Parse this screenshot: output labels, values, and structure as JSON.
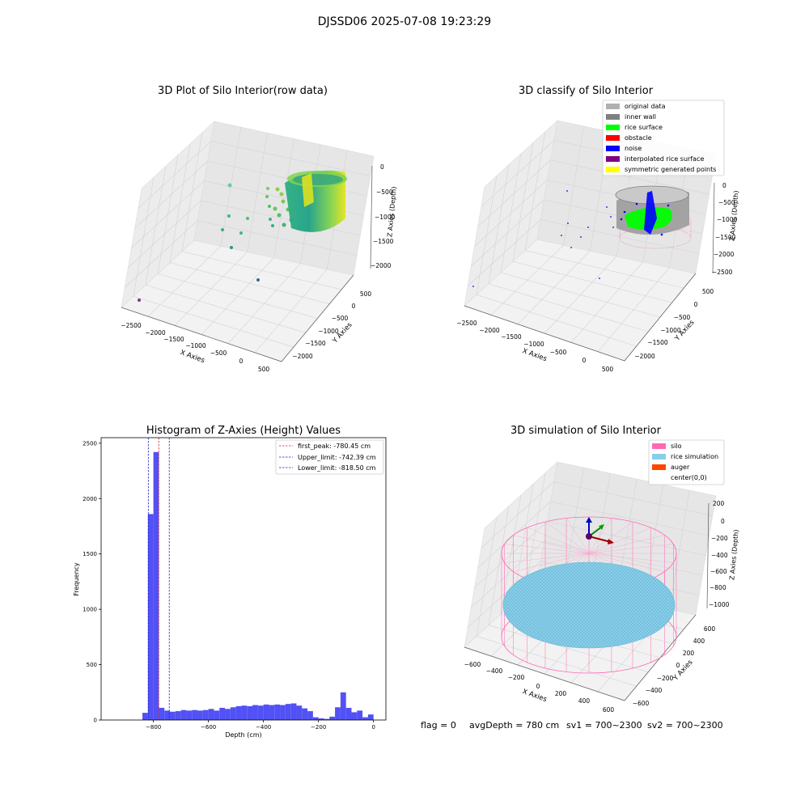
{
  "figure": {
    "suptitle": "DJSSD06 2025-07-08 19:23:29",
    "status": {
      "flag": "flag = 0",
      "avg_depth": "avgDepth = 780 cm",
      "sv1": "sv1 = 700~2300",
      "sv2": "sv2 = 700~2300"
    }
  },
  "colors": {
    "histogram_bar": "#5151f5",
    "first_peak_line": "#d62728",
    "limit_line": "#1f1fd6",
    "silo": "#ff69b4",
    "rice_simulation": "#87ceeb",
    "auger": "#ff4500",
    "original_data": "#b0b0b0",
    "inner_wall": "#808080",
    "rice_surface": "#00ff00",
    "obstacle": "#ff0000",
    "noise": "#0000ff",
    "interpolated_rice_surface": "#800080",
    "symmetric_generated_points": "#ffff00"
  },
  "chart_data": [
    {
      "type": "scatter3d",
      "title": "3D Plot of Silo Interior(row data)",
      "xlabel": "X Axies",
      "ylabel": "Y Axies",
      "zlabel": "Z Axies (Depth)",
      "xticks": [
        "−2500",
        "−2000",
        "−1500",
        "−1000",
        "−500",
        "0",
        "500"
      ],
      "yticks": [
        "500",
        "0",
        "−500",
        "−1000",
        "−1500",
        "−2000"
      ],
      "zticks": [
        "0",
        "−500",
        "−1000",
        "−1500",
        "−2000"
      ]
    },
    {
      "type": "scatter3d",
      "title": "3D classify of Silo Interior",
      "xlabel": "X Axies",
      "ylabel": "Y Axies",
      "zlabel": "Z Axies (Depth)",
      "xticks": [
        "−2500",
        "−2000",
        "−1500",
        "−1000",
        "−500",
        "0",
        "500"
      ],
      "yticks": [
        "500",
        "0",
        "−500",
        "−1000",
        "−1500",
        "−2000"
      ],
      "zticks": [
        "0",
        "−500",
        "−1000",
        "−1500",
        "−2000",
        "−2500"
      ],
      "legend": [
        {
          "name": "original data",
          "color": "#b0b0b0"
        },
        {
          "name": "inner wall",
          "color": "#808080"
        },
        {
          "name": "rice surface",
          "color": "#00ff00"
        },
        {
          "name": "obstacle",
          "color": "#ff0000"
        },
        {
          "name": "noise",
          "color": "#0000ff"
        },
        {
          "name": "interpolated rice surface",
          "color": "#800080"
        },
        {
          "name": "symmetric generated points",
          "color": "#ffff00"
        }
      ]
    },
    {
      "type": "histogram",
      "title": "Histogram of Z-Axies (Height) Values",
      "xlabel": "Depth (cm)",
      "ylabel": "Frequency",
      "xlim": [
        -990,
        45
      ],
      "ylim": [
        0,
        2550
      ],
      "xticks": [
        -800,
        -600,
        -400,
        -200,
        0
      ],
      "yticks": [
        0,
        500,
        1000,
        1500,
        2000,
        2500
      ],
      "bin_width": 20,
      "bins": [
        {
          "x": -830,
          "count": 65
        },
        {
          "x": -810,
          "count": 1860
        },
        {
          "x": -790,
          "count": 2420
        },
        {
          "x": -770,
          "count": 110
        },
        {
          "x": -750,
          "count": 85
        },
        {
          "x": -730,
          "count": 75
        },
        {
          "x": -710,
          "count": 80
        },
        {
          "x": -690,
          "count": 90
        },
        {
          "x": -670,
          "count": 85
        },
        {
          "x": -650,
          "count": 90
        },
        {
          "x": -630,
          "count": 85
        },
        {
          "x": -610,
          "count": 90
        },
        {
          "x": -590,
          "count": 100
        },
        {
          "x": -570,
          "count": 85
        },
        {
          "x": -550,
          "count": 110
        },
        {
          "x": -530,
          "count": 100
        },
        {
          "x": -510,
          "count": 115
        },
        {
          "x": -490,
          "count": 125
        },
        {
          "x": -470,
          "count": 130
        },
        {
          "x": -450,
          "count": 125
        },
        {
          "x": -430,
          "count": 135
        },
        {
          "x": -410,
          "count": 130
        },
        {
          "x": -390,
          "count": 140
        },
        {
          "x": -370,
          "count": 135
        },
        {
          "x": -350,
          "count": 140
        },
        {
          "x": -330,
          "count": 135
        },
        {
          "x": -310,
          "count": 145
        },
        {
          "x": -290,
          "count": 150
        },
        {
          "x": -270,
          "count": 130
        },
        {
          "x": -250,
          "count": 105
        },
        {
          "x": -230,
          "count": 80
        },
        {
          "x": -210,
          "count": 25
        },
        {
          "x": -190,
          "count": 15
        },
        {
          "x": -170,
          "count": 10
        },
        {
          "x": -150,
          "count": 30
        },
        {
          "x": -130,
          "count": 115
        },
        {
          "x": -110,
          "count": 250
        },
        {
          "x": -90,
          "count": 110
        },
        {
          "x": -70,
          "count": 70
        },
        {
          "x": -50,
          "count": 85
        },
        {
          "x": -30,
          "count": 25
        },
        {
          "x": -10,
          "count": 50
        }
      ],
      "vlines": [
        {
          "x": -780.45,
          "label": "first_peak: -780.45 cm",
          "color": "#d62728"
        },
        {
          "x": -742.39,
          "label": "Upper_limit: -742.39 cm",
          "color": "#1f1fd6"
        },
        {
          "x": -818.5,
          "label": "Lower_limit: -818.50 cm",
          "color": "#1f1fd6"
        }
      ]
    },
    {
      "type": "surface3d",
      "title": "3D simulation of Silo Interior",
      "xlabel": "X Axies",
      "ylabel": "Y Axies",
      "zlabel": "Z Axies (Depth)",
      "xticks": [
        "−600",
        "−400",
        "−200",
        "0",
        "200",
        "400",
        "600"
      ],
      "yticks": [
        "600",
        "400",
        "200",
        "0",
        "−200",
        "−400",
        "−600"
      ],
      "zticks": [
        "200",
        "0",
        "−200",
        "−400",
        "−600",
        "−800",
        "−1000"
      ],
      "legend": [
        {
          "name": "silo",
          "color": "#ff69b4"
        },
        {
          "name": "rice simulation",
          "color": "#87ceeb"
        },
        {
          "name": "auger",
          "color": "#ff4500"
        },
        {
          "name": "center(0,0)",
          "color": ""
        }
      ]
    }
  ]
}
